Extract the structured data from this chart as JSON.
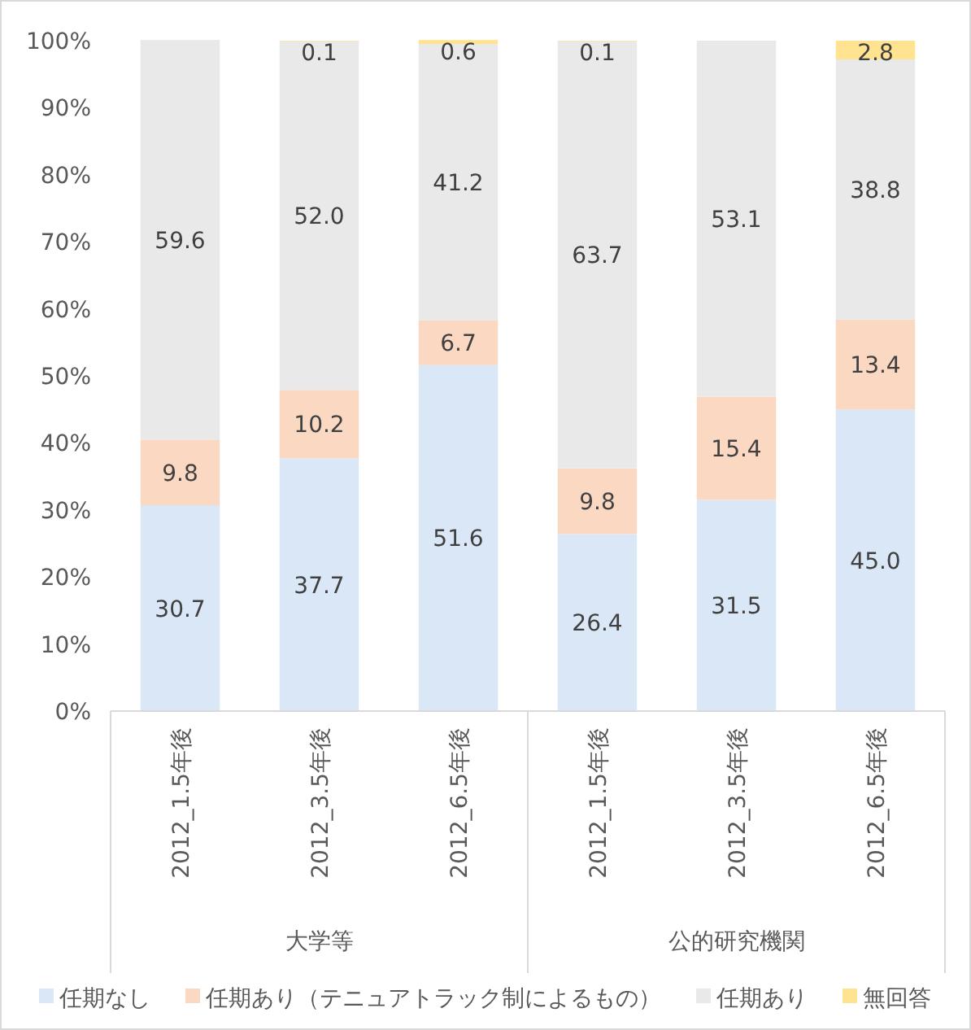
{
  "chart_data": {
    "type": "bar",
    "stacked": true,
    "categories": [
      "2012_1.5年後",
      "2012_3.5年後",
      "2012_6.5年後",
      "2012_1.5年後",
      "2012_3.5年後",
      "2012_6.5年後"
    ],
    "series": [
      {
        "name": "任期なし",
        "color": "#d9e7f7",
        "values": [
          30.7,
          37.7,
          51.6,
          26.4,
          31.5,
          45.0
        ],
        "value_labels": [
          "30.7",
          "37.7",
          "51.6",
          "26.4",
          "31.5",
          "45.0"
        ]
      },
      {
        "name": "任期あり（テニュアトラック制によるもの）",
        "color": "#fad8c2",
        "values": [
          9.8,
          10.2,
          6.7,
          9.8,
          15.4,
          13.4
        ],
        "value_labels": [
          "9.8",
          "10.2",
          "6.7",
          "9.8",
          "15.4",
          "13.4"
        ]
      },
      {
        "name": "任期あり",
        "color": "#e9e9e9",
        "values": [
          59.6,
          52.0,
          41.2,
          63.7,
          53.1,
          38.8
        ],
        "value_labels": [
          "59.6",
          "52.0",
          "41.2",
          "63.7",
          "53.1",
          "38.8"
        ]
      },
      {
        "name": "無回答",
        "color": "#ffe391",
        "values": [
          null,
          0.1,
          0.6,
          0.1,
          null,
          2.8
        ],
        "value_labels": [
          null,
          "0.1",
          "0.6",
          "0.1",
          null,
          "2.8"
        ]
      }
    ],
    "ylim": [
      0,
      100
    ],
    "yticks": [
      {
        "value": 0,
        "label": "0%"
      },
      {
        "value": 10,
        "label": "10%"
      },
      {
        "value": 20,
        "label": "20%"
      },
      {
        "value": 30,
        "label": "30%"
      },
      {
        "value": 40,
        "label": "40%"
      },
      {
        "value": 50,
        "label": "50%"
      },
      {
        "value": 60,
        "label": "60%"
      },
      {
        "value": 70,
        "label": "70%"
      },
      {
        "value": 80,
        "label": "80%"
      },
      {
        "value": 90,
        "label": "90%"
      },
      {
        "value": 100,
        "label": "100%"
      }
    ],
    "annotations": [
      "大学等",
      "公的研究機関"
    ],
    "grid": false,
    "legend": "bottom"
  }
}
